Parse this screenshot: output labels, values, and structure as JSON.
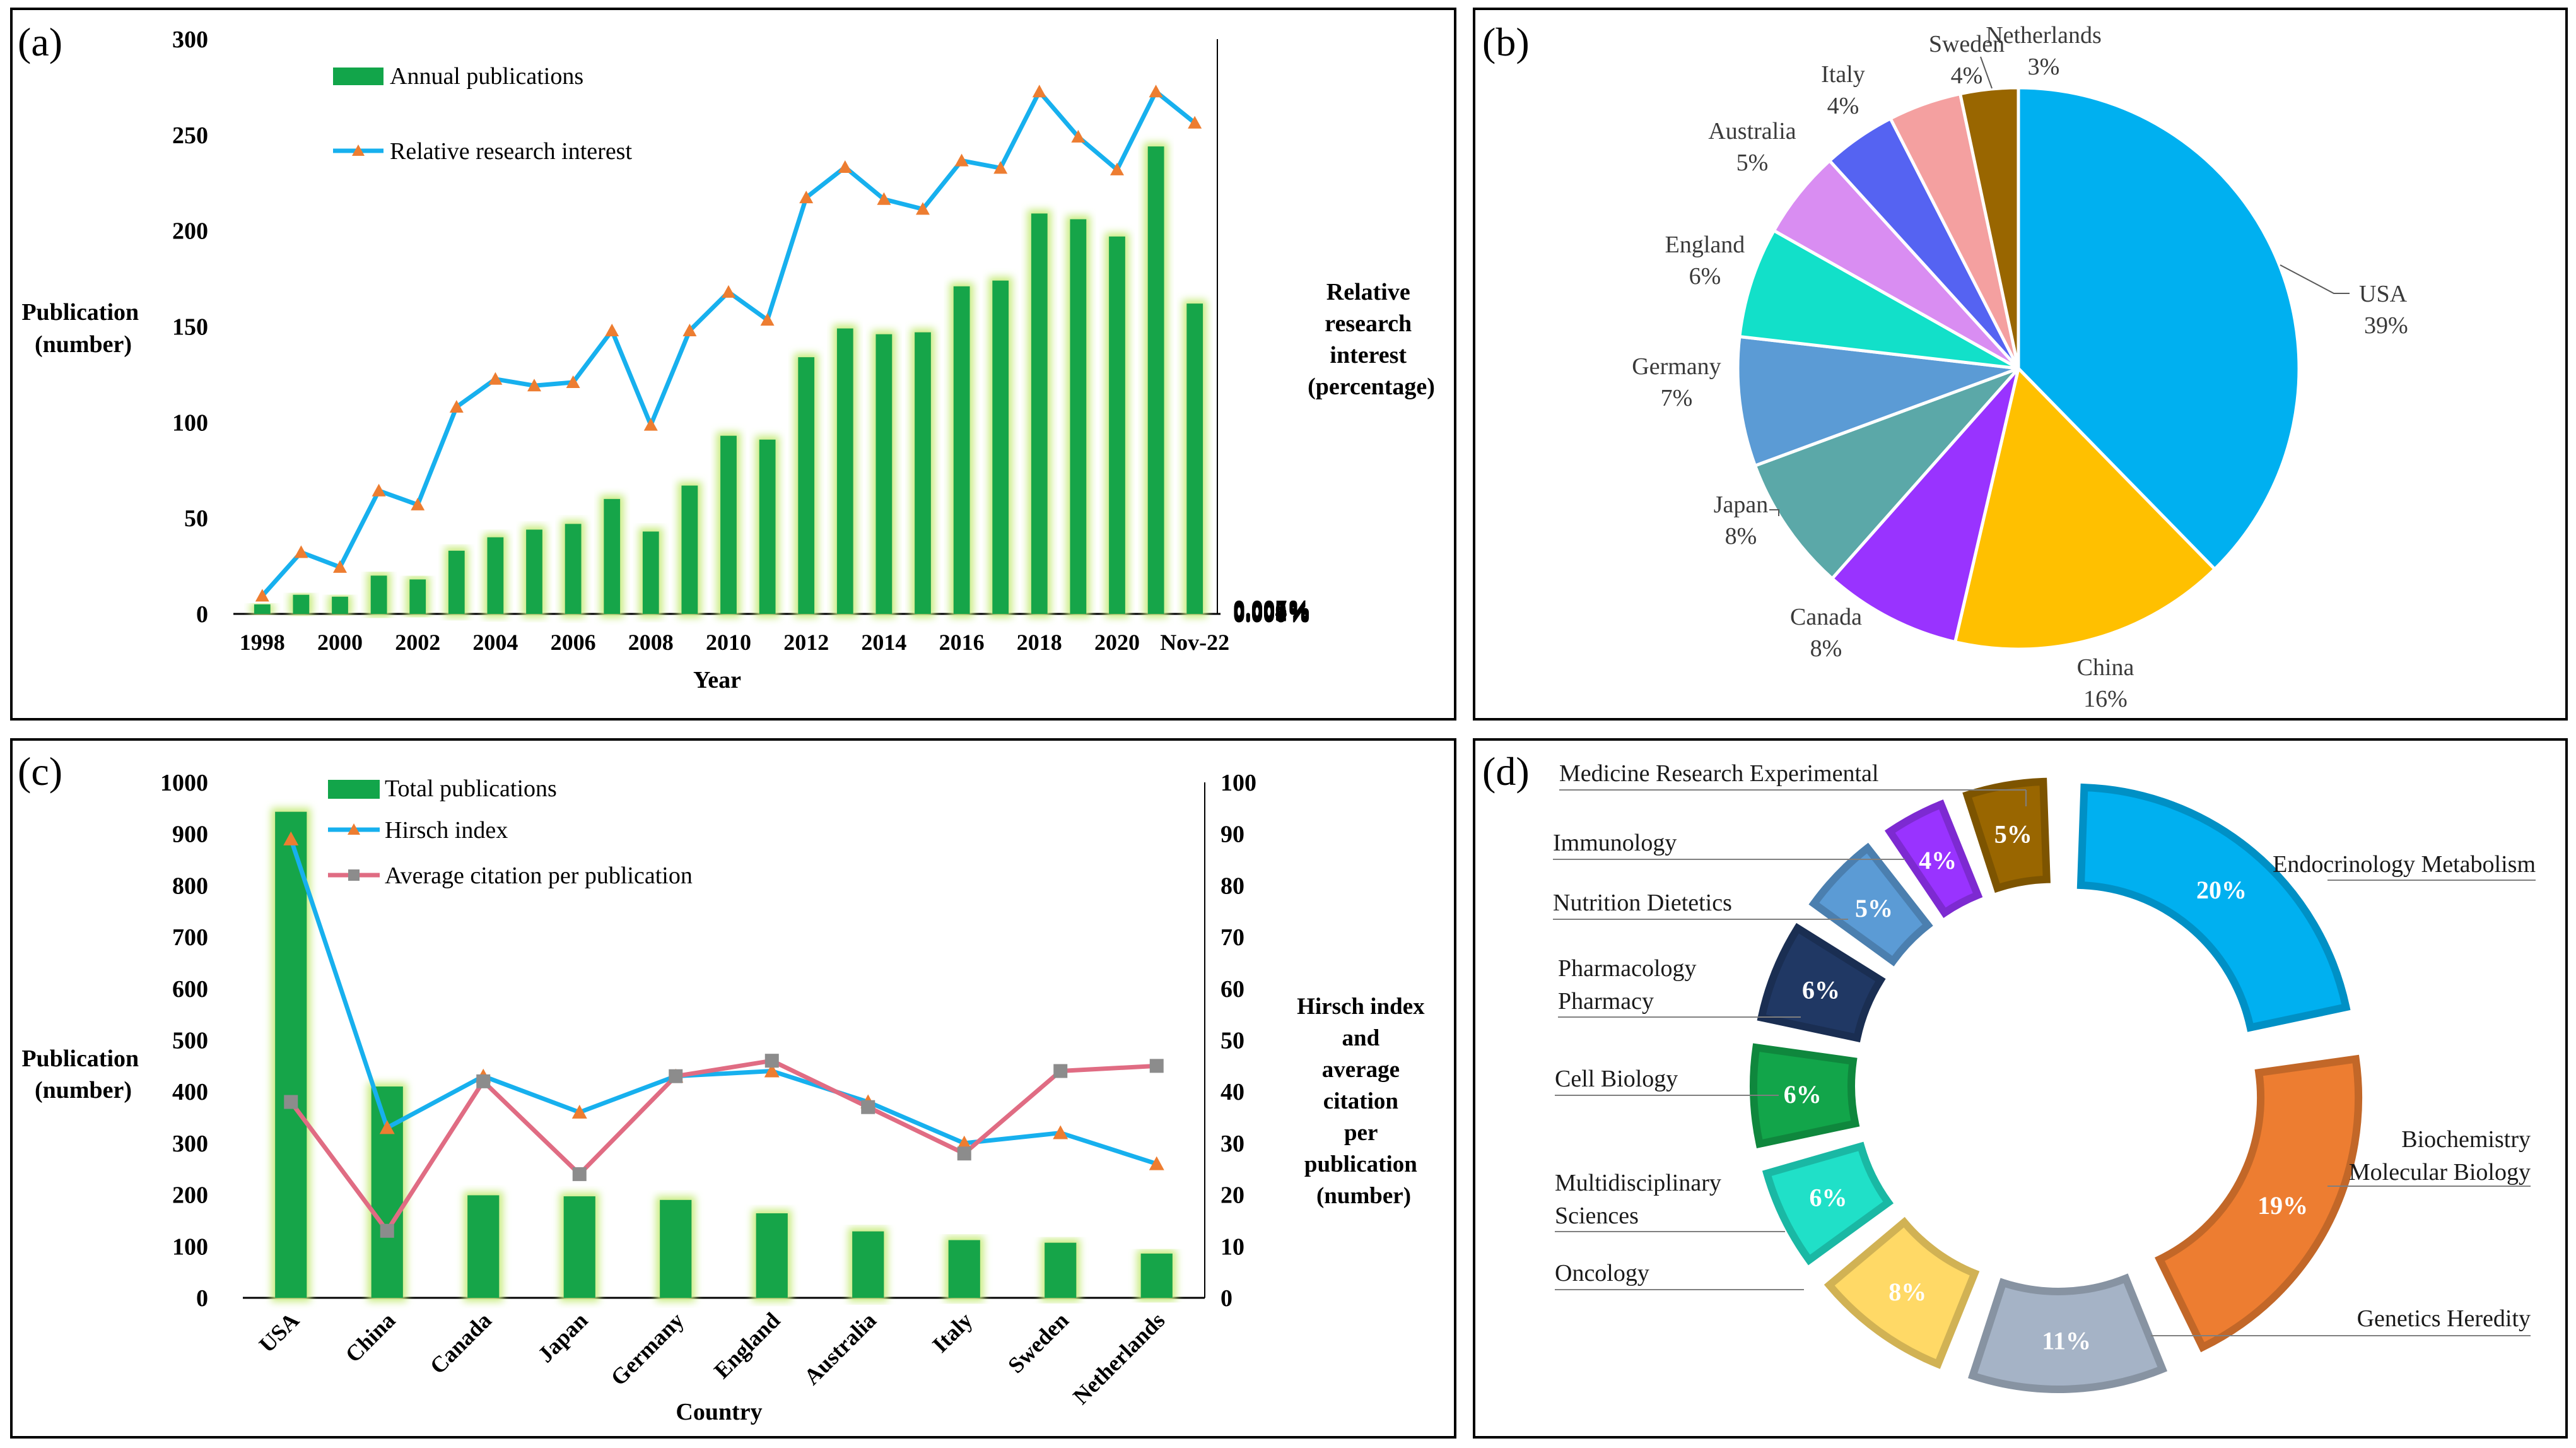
{
  "panels": [
    {
      "label": "(a)"
    },
    {
      "label": "(b)"
    },
    {
      "label": "(c)"
    },
    {
      "label": "(d)"
    }
  ],
  "colors": {
    "bar": "#12a54a",
    "bar_glow": "#c9ec82",
    "line_blue": "#17b0ee",
    "marker_orange": "#ed7d31",
    "line_pink": "#e06c83",
    "marker_gray": "#8c8c8c"
  },
  "chart_data": [
    {
      "panel": "a",
      "type": "bar+line",
      "x": [
        "1998",
        "1999",
        "2000",
        "2001",
        "2002",
        "2003",
        "2004",
        "2005",
        "2006",
        "2007",
        "2008",
        "2009",
        "2010",
        "2011",
        "2012",
        "2013",
        "2014",
        "2015",
        "2016",
        "2017",
        "2018",
        "2019",
        "2020",
        "2021",
        "Nov-22"
      ],
      "x_tick_labels": [
        "1998",
        "2000",
        "2002",
        "2004",
        "2006",
        "2008",
        "2010",
        "2012",
        "2014",
        "2016",
        "2018",
        "2020",
        "Nov-22"
      ],
      "series": [
        {
          "name": "Annual publications",
          "type": "bar",
          "axis": "left",
          "values": [
            5,
            10,
            9,
            20,
            18,
            33,
            40,
            44,
            47,
            60,
            43,
            67,
            93,
            91,
            134,
            149,
            146,
            147,
            171,
            174,
            209,
            206,
            197,
            244,
            162
          ]
        },
        {
          "name": "Relative research interest",
          "type": "line",
          "axis": "right",
          "values": [
            0.00022,
            0.00075,
            0.00057,
            0.0015,
            0.00133,
            0.00252,
            0.00286,
            0.00278,
            0.00282,
            0.00345,
            0.0023,
            0.00345,
            0.00392,
            0.00358,
            0.00507,
            0.00544,
            0.00505,
            0.00493,
            0.00552,
            0.00543,
            0.00636,
            0.00581,
            0.00541,
            0.00636,
            0.00598
          ]
        }
      ],
      "left_axis": {
        "ylim": [
          0,
          300
        ],
        "ticks": [
          "0",
          "50",
          "100",
          "150",
          "200",
          "250",
          "300"
        ],
        "label_lines": [
          "Publication",
          "(number)"
        ]
      },
      "right_axis": {
        "ylim": [
          0,
          0.007
        ],
        "ticks": [
          "0.000%",
          "0.001%",
          "0.002%",
          "0.003%",
          "0.004%",
          "0.005%",
          "0.006%",
          "0.007%"
        ],
        "label_lines": [
          "Relative",
          "research",
          "interest",
          "(percentage)"
        ]
      },
      "xlabel": "Year"
    },
    {
      "panel": "b",
      "type": "pie",
      "slices": [
        {
          "label": "USA",
          "pct_text": "39%",
          "value": 38.5,
          "color": "#00b0f0"
        },
        {
          "label": "China",
          "pct_text": "16%",
          "value": 16.3,
          "color": "#ffc000"
        },
        {
          "label": "Canada",
          "pct_text": "8%",
          "value": 8.1,
          "color": "#9933ff"
        },
        {
          "label": "Japan",
          "pct_text": "8%",
          "value": 8.0,
          "color": "#5ba8a8"
        },
        {
          "label": "Germany",
          "pct_text": "7%",
          "value": 7.6,
          "color": "#5b9bd5"
        },
        {
          "label": "England",
          "pct_text": "6%",
          "value": 6.5,
          "color": "#12e0c9"
        },
        {
          "label": "Australia",
          "pct_text": "5%",
          "value": 5.2,
          "color": "#d98df2"
        },
        {
          "label": "Italy",
          "pct_text": "4%",
          "value": 4.3,
          "color": "#5563f2"
        },
        {
          "label": "Sweden",
          "pct_text": "4%",
          "value": 4.3,
          "color": "#f4a0a0"
        },
        {
          "label": "Netherlands",
          "pct_text": "3%",
          "value": 3.4,
          "color": "#996600"
        }
      ]
    },
    {
      "panel": "c",
      "type": "bar+line",
      "categories": [
        "USA",
        "China",
        "Canada",
        "Japan",
        "Germany",
        "England",
        "Australia",
        "Italy",
        "Sweden",
        "Netherlands"
      ],
      "series": [
        {
          "name": "Total publications",
          "type": "bar",
          "axis": "left",
          "values": [
            943,
            410,
            199,
            197,
            190,
            164,
            129,
            112,
            107,
            86
          ]
        },
        {
          "name": "Hirsch index",
          "type": "line",
          "axis": "right",
          "values": [
            89,
            33,
            43,
            36,
            43,
            44,
            38,
            30,
            32,
            26
          ]
        },
        {
          "name": "Average citation per publication",
          "type": "line",
          "axis": "right",
          "values": [
            38,
            13,
            42,
            24,
            43,
            46,
            37,
            28,
            44,
            45
          ]
        }
      ],
      "left_axis": {
        "ylim": [
          0,
          1000
        ],
        "ticks": [
          "0",
          "100",
          "200",
          "300",
          "400",
          "500",
          "600",
          "700",
          "800",
          "900",
          "1000"
        ],
        "label_lines": [
          "Publication",
          "(number)"
        ]
      },
      "right_axis": {
        "ylim": [
          0,
          100
        ],
        "ticks": [
          "0",
          "10",
          "20",
          "30",
          "40",
          "50",
          "60",
          "70",
          "80",
          "90",
          "100"
        ],
        "label_lines": [
          "Hirsch index",
          "and",
          "average",
          "citation",
          "per",
          "publication",
          "(number)"
        ]
      },
      "xlabel": "Country"
    },
    {
      "panel": "d",
      "type": "donut",
      "segments": [
        {
          "label_lines": [
            "Endocrinology Metabolism"
          ],
          "pct_text": "20%",
          "value": 20,
          "color": "#00b0f0"
        },
        {
          "label_lines": [
            "Biochemistry",
            "Molecular Biology"
          ],
          "pct_text": "19%",
          "value": 19,
          "color": "#ed7d31"
        },
        {
          "label_lines": [
            "Genetics Heredity"
          ],
          "pct_text": "11%",
          "value": 11,
          "color": "#a5b3c6"
        },
        {
          "label_lines": [
            "Oncology"
          ],
          "pct_text": "8%",
          "value": 8,
          "color": "#ffd966"
        },
        {
          "label_lines": [
            "Multidisciplinary",
            "Sciences"
          ],
          "pct_text": "6%",
          "value": 6,
          "color": "#20e0c8"
        },
        {
          "label_lines": [
            "Cell Biology"
          ],
          "pct_text": "6%",
          "value": 6,
          "color": "#12a54a"
        },
        {
          "label_lines": [
            "Pharmacology",
            "Pharmacy"
          ],
          "pct_text": "6%",
          "value": 6,
          "color": "#203864"
        },
        {
          "label_lines": [
            "Nutrition Dietetics"
          ],
          "pct_text": "5%",
          "value": 5,
          "color": "#5b9bd5"
        },
        {
          "label_lines": [
            "Immunology"
          ],
          "pct_text": "4%",
          "value": 4,
          "color": "#9933ff"
        },
        {
          "label_lines": [
            "Medicine Research Experimental"
          ],
          "pct_text": "5%",
          "value": 5,
          "color": "#996600"
        }
      ]
    }
  ]
}
